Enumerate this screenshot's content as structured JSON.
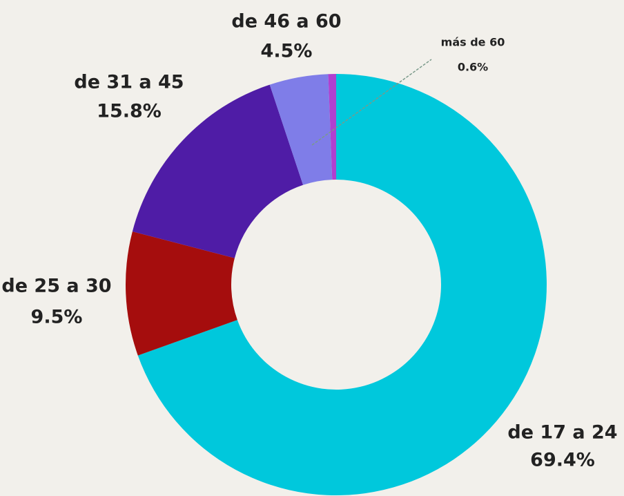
{
  "chart_data": {
    "type": "donut",
    "categories": [
      "de 17 a 24",
      "de 25 a 30",
      "de 31 a 45",
      "de 46 a 60",
      "más de 60"
    ],
    "values": [
      69.4,
      9.5,
      15.8,
      4.5,
      0.6
    ],
    "value_labels": [
      "69.4%",
      "9.5%",
      "15.8%",
      "4.5%",
      "0.6%"
    ],
    "colors": [
      "#00c8dc",
      "#a50d0d",
      "#4f1ca6",
      "#7f7de8",
      "#b040d0"
    ]
  }
}
